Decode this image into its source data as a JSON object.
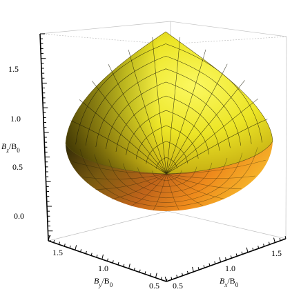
{
  "chart_data": {
    "type": "surface3d",
    "title": "",
    "axes": {
      "x": {
        "label": "B_x/B_0",
        "label_main": "B",
        "label_sub": "x",
        "label_tail": "/B",
        "label_tail_sub": "0",
        "range": [
          0.5,
          1.6
        ],
        "ticks": [
          "0.5",
          "1.0",
          "1.5"
        ]
      },
      "y": {
        "label": "B_y/B_0",
        "label_main": "B",
        "label_sub": "y",
        "label_tail": "/B",
        "label_tail_sub": "0",
        "range": [
          0.5,
          1.6
        ],
        "ticks": [
          "0.5",
          "1.0",
          "1.5"
        ]
      },
      "z": {
        "label": "B_z/B_0",
        "label_main": "B",
        "label_sub": "z",
        "label_tail": "/B",
        "label_tail_sub": "0",
        "range": [
          -0.3,
          1.8
        ],
        "ticks": [
          "0.0",
          "0.5",
          "1.0",
          "1.5"
        ]
      }
    },
    "surface": {
      "apex": {
        "x": 0.5,
        "y": 0.5,
        "z": 0.5
      },
      "top": {
        "x": 1.0,
        "y": 1.0,
        "z": 1.8
      },
      "bottom": {
        "x": 1.0,
        "y": 1.0,
        "z": -0.1
      },
      "mesh": true,
      "colors": {
        "top": "#f4f03a",
        "mid": "#d6c21c",
        "shadow": "#3a3408",
        "warm": "#f08a1a",
        "hot": "#d04a10"
      }
    },
    "box": true,
    "box_color": "#bbbbbb"
  }
}
